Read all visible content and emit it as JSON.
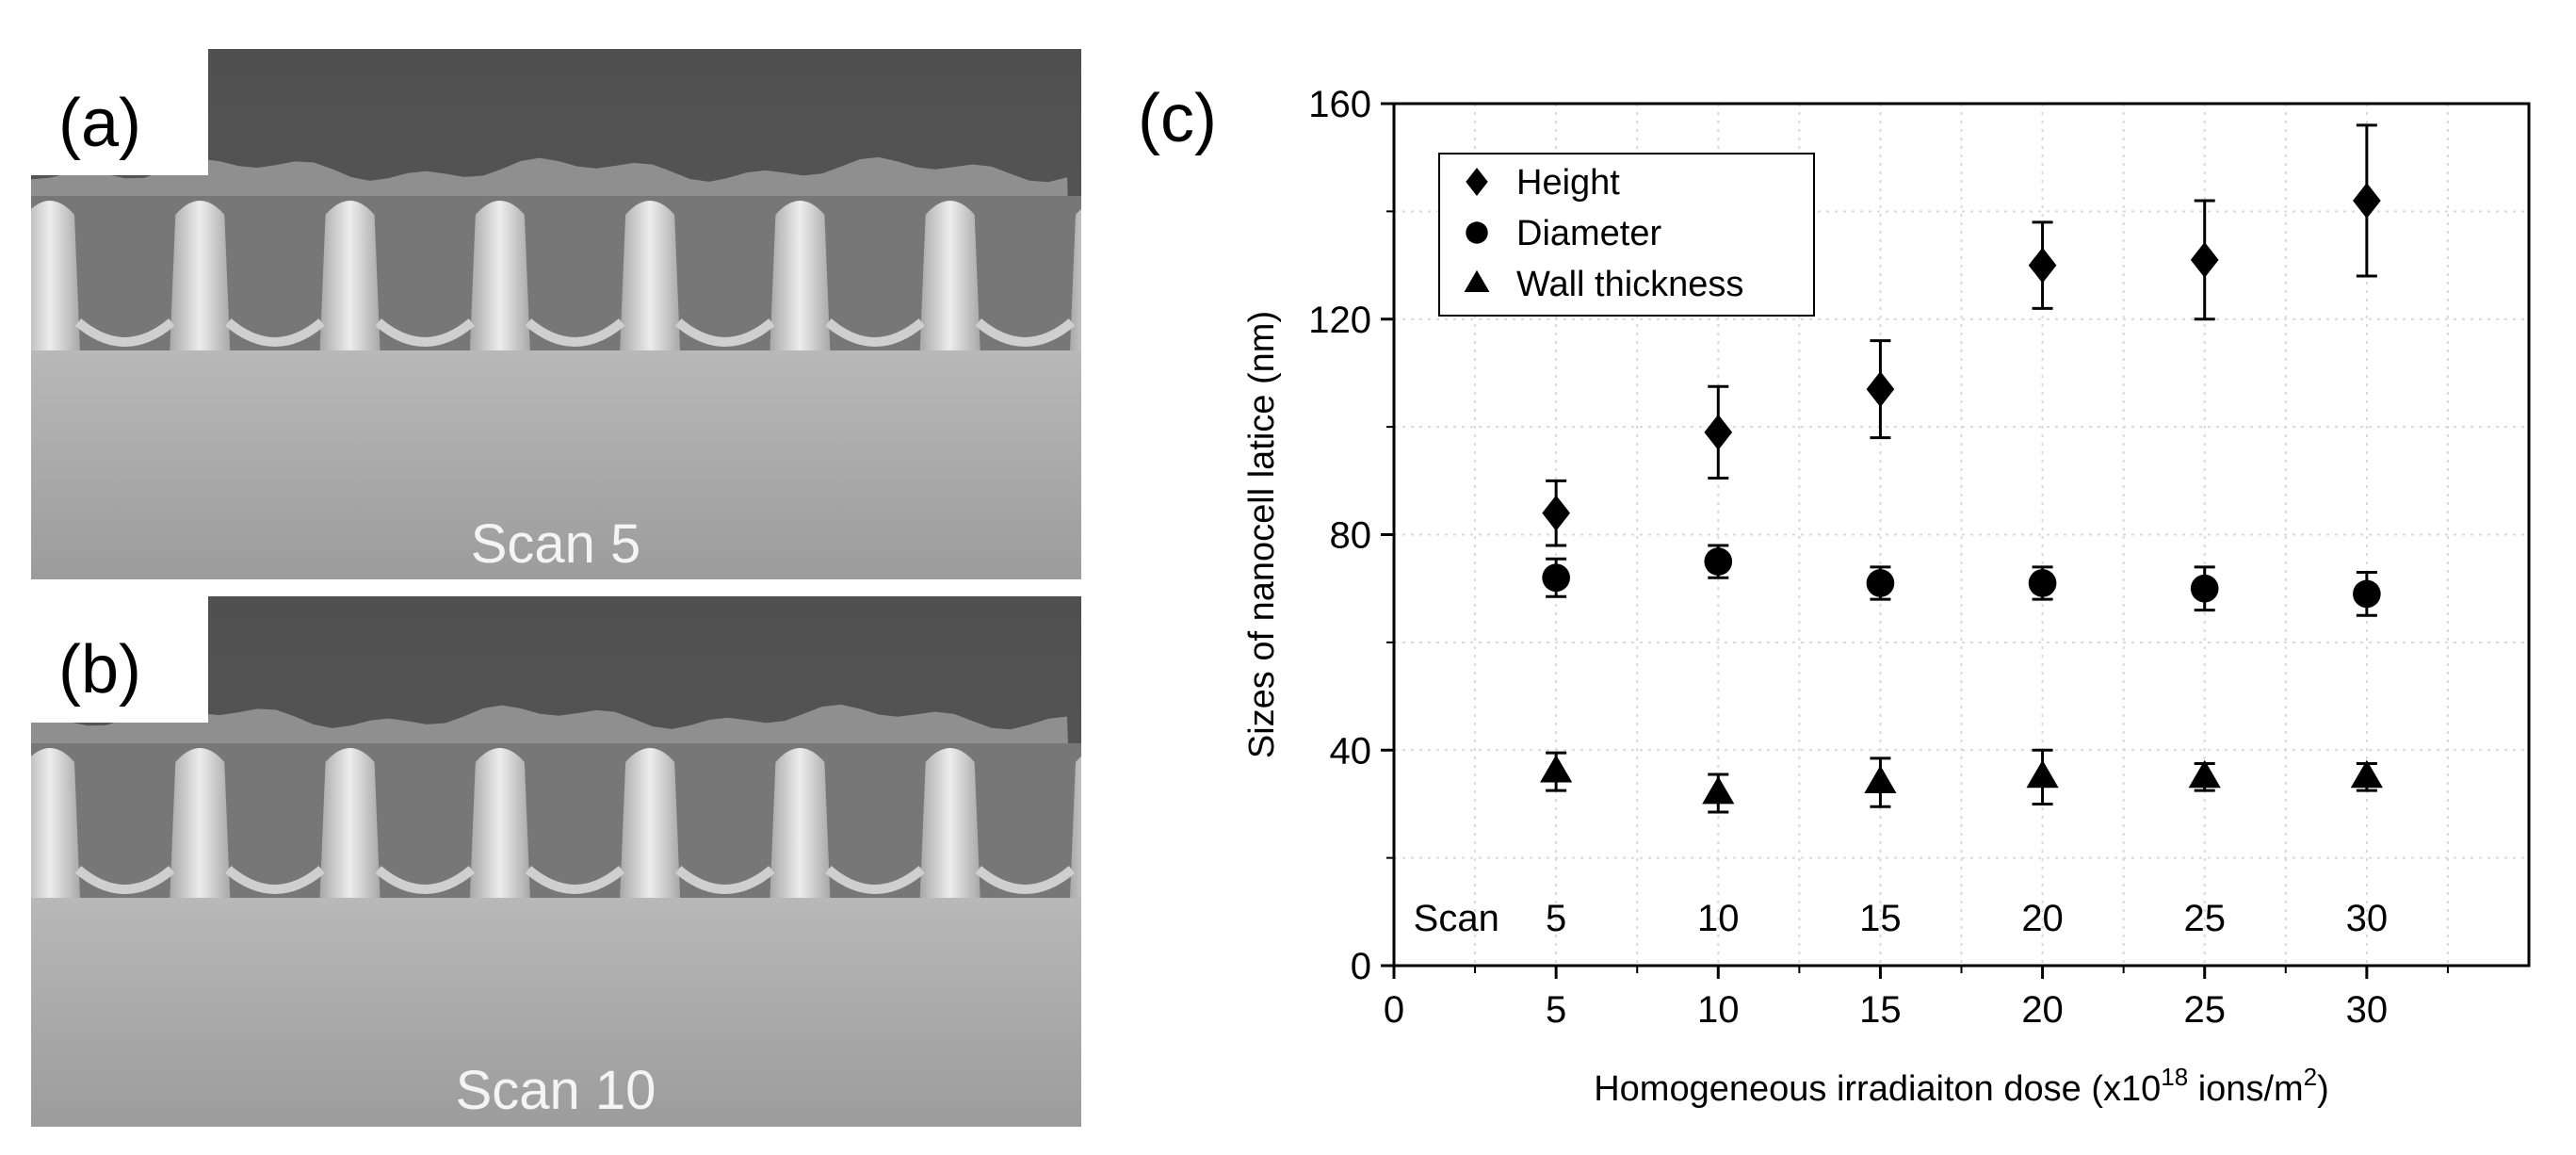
{
  "panels": {
    "a": {
      "label": "(a)",
      "caption": "Scan 5"
    },
    "b": {
      "label": "(b)",
      "caption": "Scan 10"
    },
    "c": {
      "label": "(c)"
    }
  },
  "chart_data": {
    "type": "scatter",
    "title": "",
    "xlabel_prefix": "Homogeneous irradiaiton dose (x10",
    "xlabel_exp": "18",
    "xlabel_mid": " ions/m",
    "xlabel_exp2": "2",
    "xlabel_suffix": ")",
    "ylabel": "Sizes of nanocell latice (nm)",
    "xlim": [
      0,
      35
    ],
    "ylim": [
      0,
      160
    ],
    "xticks": [
      0,
      5,
      10,
      15,
      20,
      25,
      30
    ],
    "yticks": [
      0,
      40,
      80,
      120,
      160
    ],
    "grid": true,
    "legend_position": "top-left",
    "series": [
      {
        "name": "Height",
        "marker": "diamond",
        "x": [
          5,
          10,
          15,
          20,
          25,
          30
        ],
        "y": [
          84,
          99,
          107,
          130,
          131,
          142
        ],
        "err": [
          6,
          8.5,
          9,
          8,
          11,
          14
        ]
      },
      {
        "name": "Diameter",
        "marker": "circle",
        "x": [
          5,
          10,
          15,
          20,
          25,
          30
        ],
        "y": [
          72,
          75,
          71,
          71,
          70,
          69
        ],
        "err": [
          3.5,
          3,
          3,
          3,
          4,
          4
        ]
      },
      {
        "name": "Wall thickness",
        "marker": "triangle",
        "x": [
          5,
          10,
          15,
          20,
          25,
          30
        ],
        "y": [
          36,
          32,
          34,
          35,
          35,
          35
        ],
        "err": [
          3.5,
          3.5,
          4.5,
          5,
          2.5,
          2.5
        ]
      }
    ],
    "annotation_label": "Scan",
    "scan_labels": [
      "5",
      "10",
      "15",
      "20",
      "25",
      "30"
    ]
  },
  "colors": {
    "marker": "#000000",
    "grid": "#d9d9d9",
    "sem_dark": "#555555",
    "sem_wall_dark": "#9a9a9a",
    "sem_wall_light": "#eeeeee",
    "sem_base": "#a6a6a6"
  }
}
